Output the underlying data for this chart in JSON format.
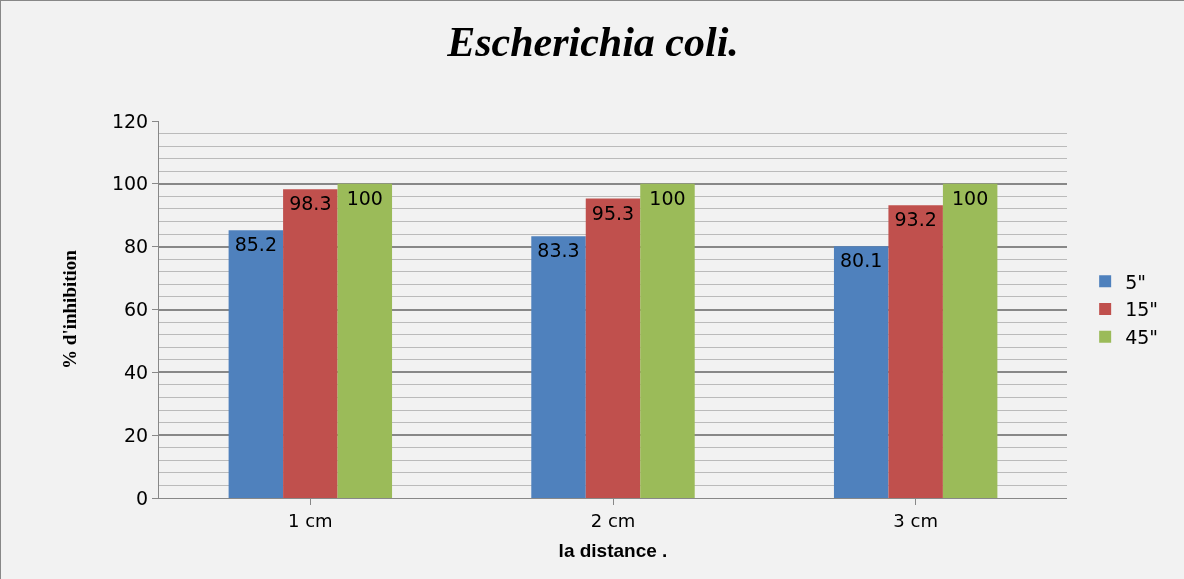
{
  "chart_data": {
    "type": "bar",
    "title": "Escherichia coli.",
    "xlabel": "la distance .",
    "ylabel": "% d'inhibition",
    "categories": [
      "1 cm",
      "2 cm",
      "3 cm"
    ],
    "series": [
      {
        "name": "5\"",
        "color": "#4f81bd",
        "values": [
          85.2,
          83.3,
          80.1
        ]
      },
      {
        "name": "15\"",
        "color": "#c0504d",
        "values": [
          98.3,
          95.3,
          93.2
        ]
      },
      {
        "name": "45\"",
        "color": "#9bbb59",
        "values": [
          100,
          100,
          100
        ]
      }
    ],
    "ylim": [
      0,
      120
    ],
    "yticks": [
      0,
      20,
      40,
      60,
      80,
      100,
      120
    ],
    "grid": "y",
    "legend": "right",
    "data_labels": true
  }
}
